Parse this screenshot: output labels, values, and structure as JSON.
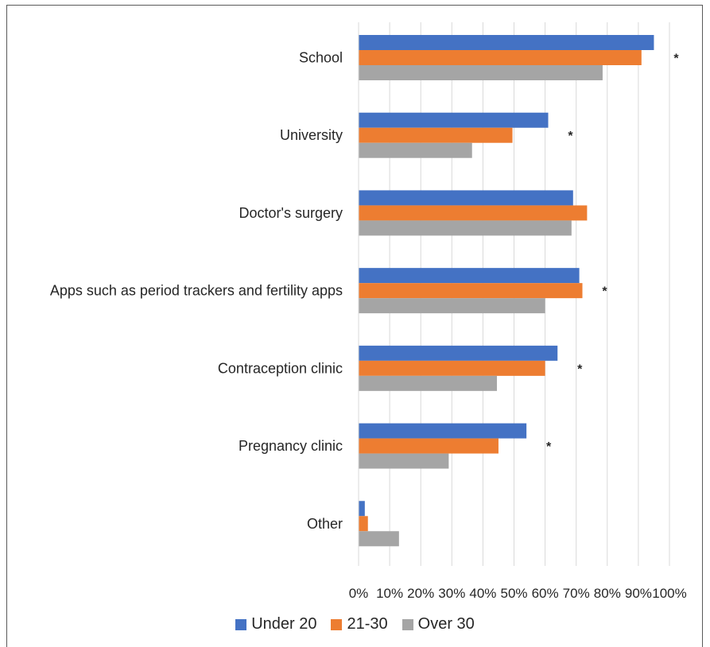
{
  "chart_data": {
    "type": "bar",
    "orientation": "horizontal",
    "categories": [
      "School",
      "University",
      "Doctor's surgery",
      "Apps such as period trackers and fertility apps",
      "Contraception clinic",
      "Pregnancy clinic",
      "Other"
    ],
    "series": [
      {
        "name": "Under 20",
        "color": "#4472C4",
        "values": [
          95,
          61,
          69,
          71,
          64,
          54,
          2
        ]
      },
      {
        "name": "21-30",
        "color": "#ED7D31",
        "values": [
          91,
          49.5,
          73.5,
          72,
          60,
          45,
          3
        ]
      },
      {
        "name": "Over 30",
        "color": "#A5A5A5",
        "values": [
          78.5,
          36.5,
          68.5,
          60,
          44.5,
          29,
          13
        ]
      }
    ],
    "significance": [
      "*",
      "*",
      "",
      "*",
      "*",
      "*",
      ""
    ],
    "xlim": [
      0,
      100
    ],
    "x_ticks": [
      "0%",
      "10%",
      "20%",
      "30%",
      "40%",
      "50%",
      "60%",
      "70%",
      "80%",
      "90%",
      "100%"
    ],
    "grid": true,
    "legend_position": "bottom"
  }
}
